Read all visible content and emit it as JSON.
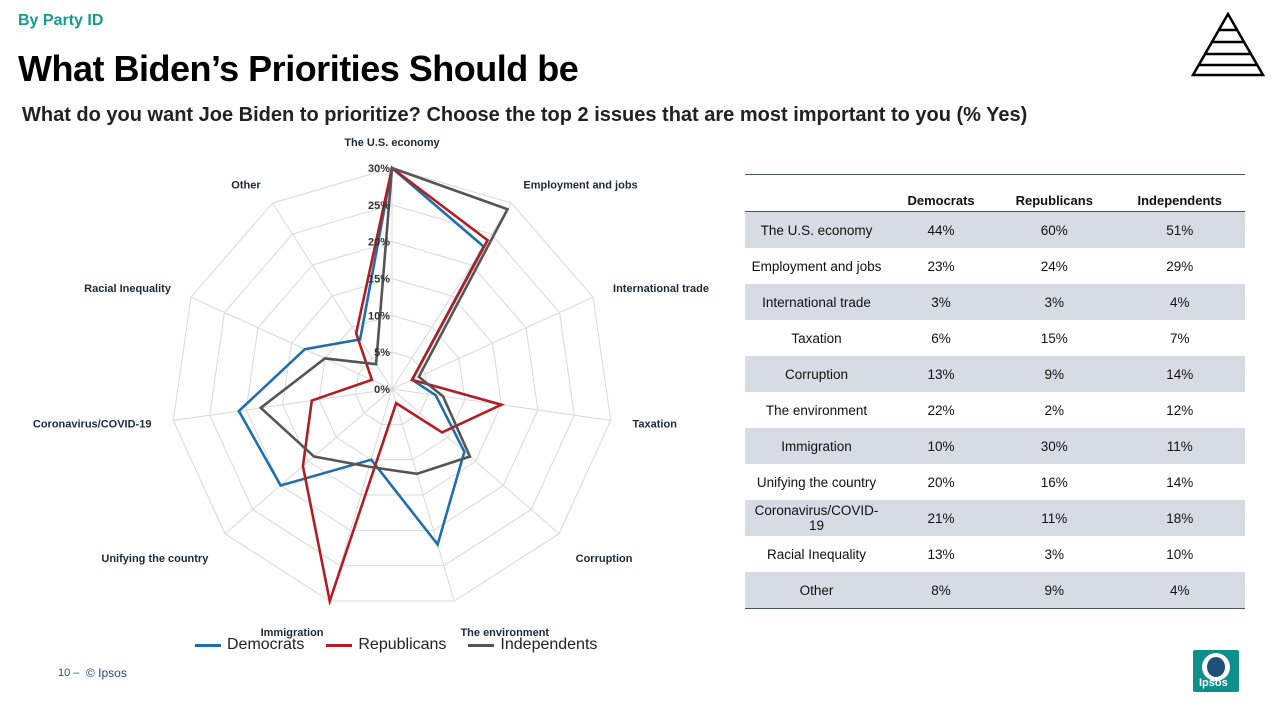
{
  "header": {
    "eyebrow": "By Party ID",
    "title": "What Biden’s Priorities Should be",
    "subtitle": "What do you want Joe Biden to prioritize? Choose the top 2 issues that are most important to you (% Yes)"
  },
  "chart_data": {
    "type": "radar",
    "categories": [
      "The U.S. economy",
      "Employment and jobs",
      "International trade",
      "Taxation",
      "Corruption",
      "The environment",
      "Immigration",
      "Unifying the country",
      "Coronavirus/COVID-19",
      "Racial Inequality",
      "Other"
    ],
    "series": [
      {
        "name": "Democrats",
        "color": "#1f6fad",
        "values": [
          44,
          23,
          3,
          6,
          13,
          22,
          10,
          20,
          21,
          13,
          8
        ]
      },
      {
        "name": "Republicans",
        "color": "#b01e23",
        "values": [
          60,
          24,
          3,
          15,
          9,
          2,
          30,
          16,
          11,
          3,
          9
        ]
      },
      {
        "name": "Independents",
        "color": "#555555",
        "values": [
          51,
          29,
          4,
          7,
          14,
          12,
          11,
          14,
          18,
          10,
          4
        ]
      }
    ],
    "rlim": [
      0,
      30
    ],
    "tick_labels": [
      "0%",
      "5%",
      "10%",
      "15%",
      "20%",
      "25%",
      "30%"
    ],
    "tick_values": [
      0,
      5,
      10,
      15,
      20,
      25,
      30
    ],
    "grid": true,
    "legend_position": "bottom"
  },
  "table": {
    "columns": [
      "",
      "Democrats",
      "Republicans",
      "Independents"
    ],
    "rows": [
      [
        "The U.S. economy",
        "44%",
        "60%",
        "51%"
      ],
      [
        "Employment and jobs",
        "23%",
        "24%",
        "29%"
      ],
      [
        "International trade",
        "3%",
        "3%",
        "4%"
      ],
      [
        "Taxation",
        "6%",
        "15%",
        "7%"
      ],
      [
        "Corruption",
        "13%",
        "9%",
        "14%"
      ],
      [
        "The environment",
        "22%",
        "2%",
        "12%"
      ],
      [
        "Immigration",
        "10%",
        "30%",
        "11%"
      ],
      [
        "Unifying the country",
        "20%",
        "16%",
        "14%"
      ],
      [
        "Coronavirus/COVID-19",
        "21%",
        "11%",
        "18%"
      ],
      [
        "Racial Inequality",
        "13%",
        "3%",
        "10%"
      ],
      [
        "Other",
        "8%",
        "9%",
        "4%"
      ]
    ]
  },
  "footer": {
    "page": "10 –",
    "copyright": "© Ipsos",
    "logo_text": "Ipsos"
  },
  "colors": {
    "accent": "#149c94",
    "shade": "#d6dbe4"
  }
}
